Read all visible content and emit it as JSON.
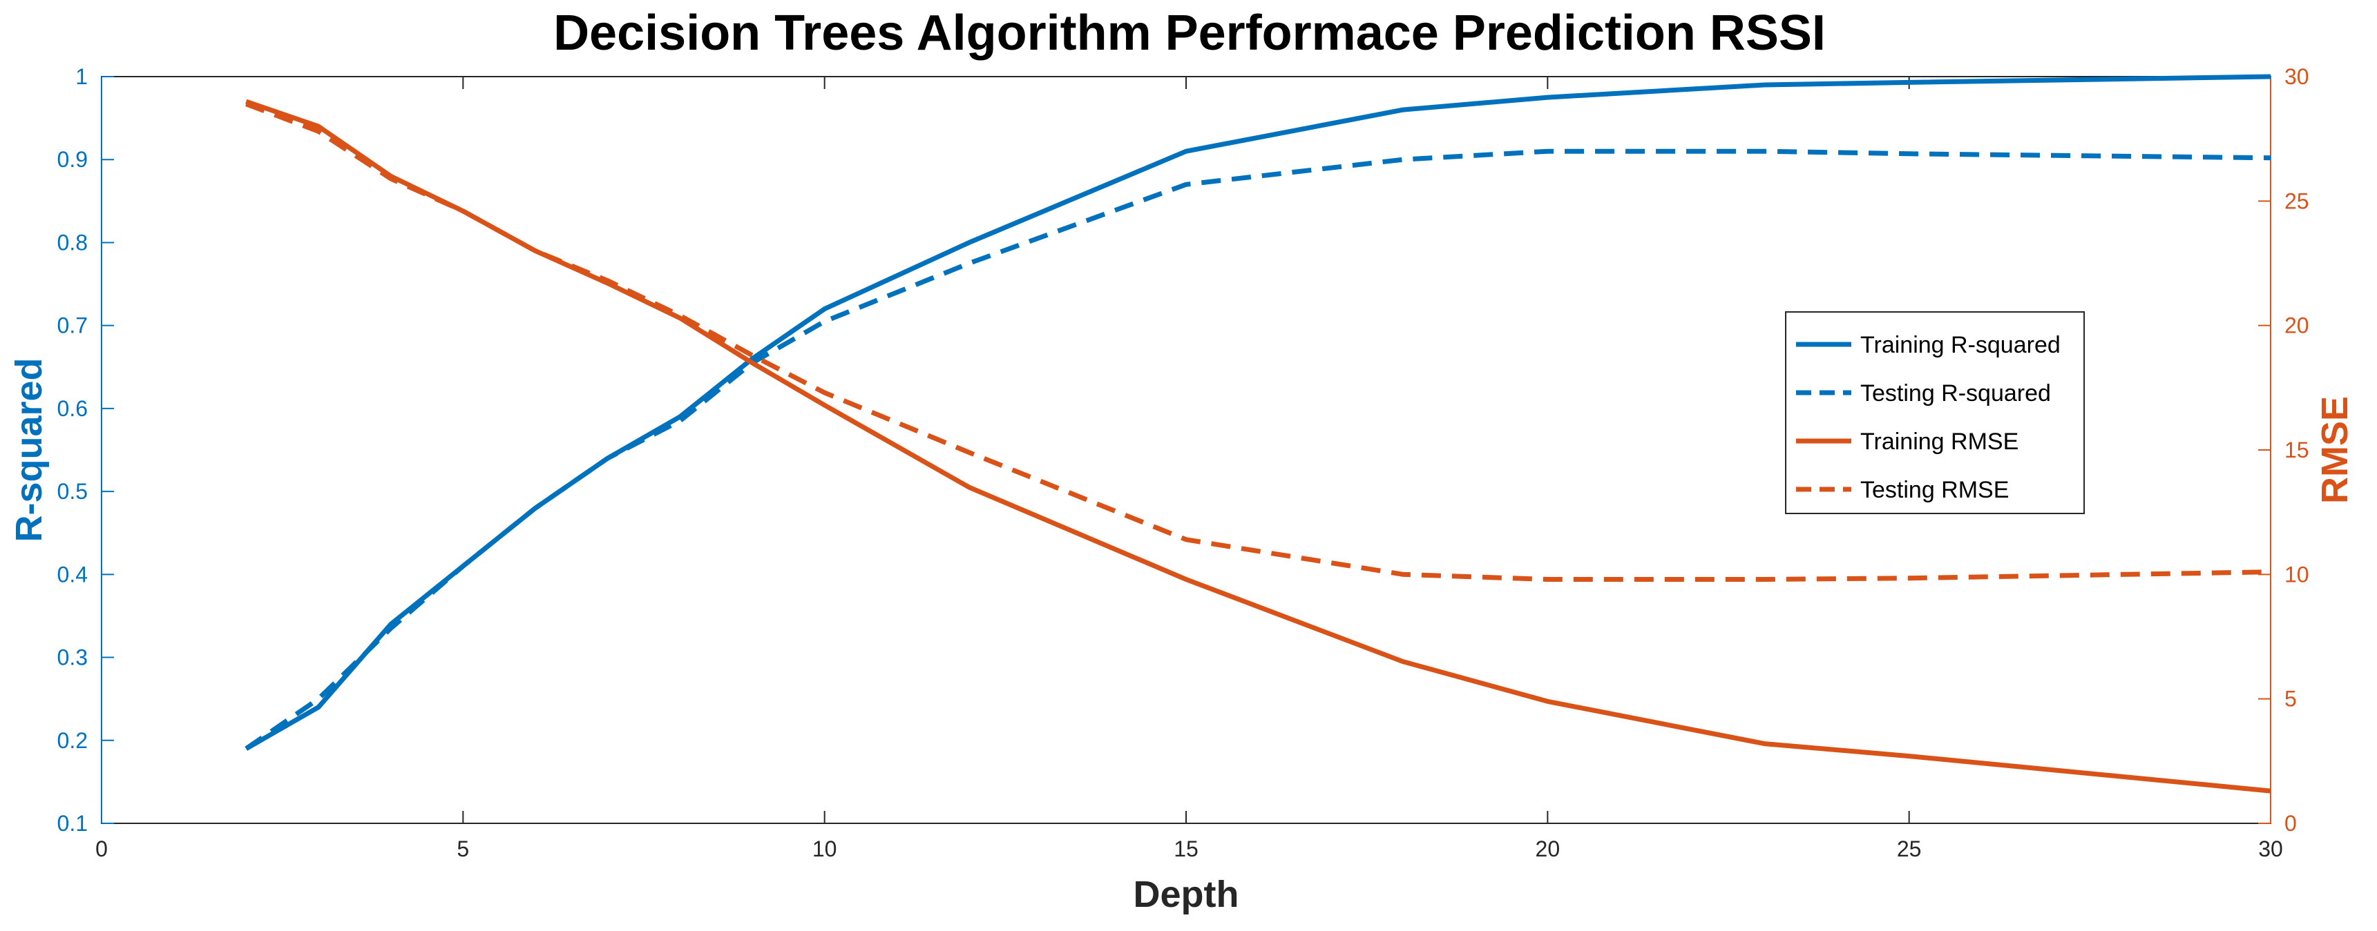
{
  "chart_data": {
    "type": "line",
    "title": "Decision Trees Algorithm Performace Prediction RSSI",
    "xlabel": "Depth",
    "ylabel_left": "R-squared",
    "ylabel_right": "RMSE",
    "xlim": [
      0,
      30
    ],
    "ylim_left": [
      0.1,
      1
    ],
    "ylim_right": [
      0,
      30
    ],
    "x_ticks": [
      "0",
      "5",
      "10",
      "15",
      "20",
      "25",
      "30"
    ],
    "y_left_ticks": [
      "0.1",
      "0.2",
      "0.3",
      "0.4",
      "0.5",
      "0.6",
      "0.7",
      "0.8",
      "0.9",
      "1"
    ],
    "y_right_ticks": [
      "0",
      "5",
      "10",
      "15",
      "20",
      "25",
      "30"
    ],
    "grid": false,
    "legend_position": "right",
    "colors": {
      "blue": "#0072BD",
      "orange": "#D95319",
      "axis": "#262626"
    },
    "series": [
      {
        "name": "Training R-squared",
        "axis": "left",
        "style": "solid",
        "color": "#0072BD",
        "x": [
          2,
          3,
          4,
          5,
          6,
          7,
          8,
          9,
          10,
          12,
          15,
          18,
          20,
          23,
          25,
          30
        ],
        "y": [
          0.19,
          0.24,
          0.34,
          0.41,
          0.48,
          0.54,
          0.59,
          0.66,
          0.72,
          0.8,
          0.91,
          0.96,
          0.975,
          0.99,
          0.993,
          1.0
        ]
      },
      {
        "name": "Testing R-squared",
        "axis": "left",
        "style": "dashed",
        "color": "#0072BD",
        "x": [
          2,
          3,
          4,
          5,
          6,
          7,
          8,
          9,
          10,
          12,
          15,
          18,
          20,
          23,
          25,
          30
        ],
        "y": [
          0.19,
          0.25,
          0.335,
          0.41,
          0.48,
          0.54,
          0.585,
          0.655,
          0.705,
          0.775,
          0.87,
          0.9,
          0.91,
          0.91,
          0.907,
          0.902
        ]
      },
      {
        "name": "Training RMSE",
        "axis": "right",
        "style": "solid",
        "color": "#D95319",
        "x": [
          2,
          3,
          4,
          5,
          6,
          7,
          8,
          9,
          10,
          12,
          15,
          18,
          20,
          23,
          25,
          30
        ],
        "y": [
          29.0,
          28.0,
          26.0,
          24.6,
          23.0,
          21.7,
          20.3,
          18.5,
          16.8,
          13.5,
          9.8,
          6.5,
          4.9,
          3.2,
          2.7,
          1.3
        ]
      },
      {
        "name": "Testing RMSE",
        "axis": "right",
        "style": "dashed",
        "color": "#D95319",
        "x": [
          2,
          3,
          4,
          5,
          6,
          7,
          8,
          9,
          10,
          12,
          15,
          18,
          20,
          23,
          25,
          30
        ],
        "y": [
          28.9,
          27.8,
          25.9,
          24.6,
          23.0,
          21.8,
          20.4,
          18.8,
          17.3,
          14.9,
          11.4,
          10.0,
          9.8,
          9.8,
          9.85,
          10.1
        ]
      }
    ]
  }
}
